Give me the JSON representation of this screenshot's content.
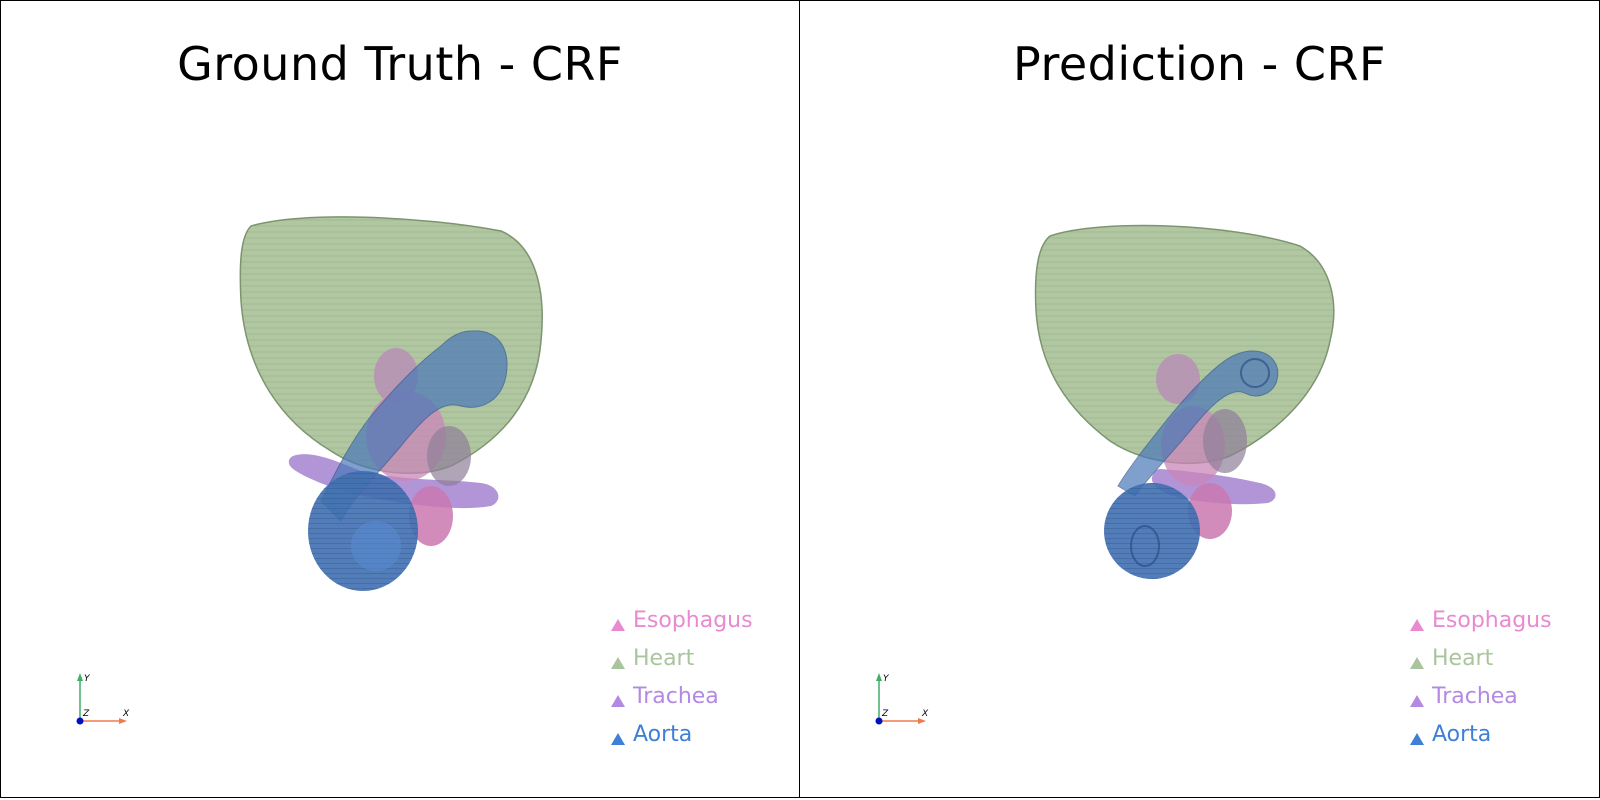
{
  "panels": [
    {
      "title": "Ground Truth - CRF",
      "legend": [
        {
          "label": "Esophagus",
          "color": "#e88ad1"
        },
        {
          "label": "Heart",
          "color": "#a9c59e"
        },
        {
          "label": "Trachea",
          "color": "#b389e3"
        },
        {
          "label": "Aorta",
          "color": "#3f7fd6"
        }
      ],
      "axes": {
        "x": "X",
        "y": "Y",
        "z": "Z"
      }
    },
    {
      "title": "Prediction - CRF",
      "legend": [
        {
          "label": "Esophagus",
          "color": "#e88ad1"
        },
        {
          "label": "Heart",
          "color": "#a9c59e"
        },
        {
          "label": "Trachea",
          "color": "#b389e3"
        },
        {
          "label": "Aorta",
          "color": "#3f7fd6"
        }
      ],
      "axes": {
        "x": "X",
        "y": "Y",
        "z": "Z"
      }
    }
  ],
  "colors": {
    "heart": "#9fb98f",
    "aorta": "#3f6fb0",
    "trachea": "#a583d0",
    "esophagus": "#c978b0",
    "axis_x": "#f07a50",
    "axis_y": "#3fae6a",
    "axis_z": "#0010c0"
  }
}
